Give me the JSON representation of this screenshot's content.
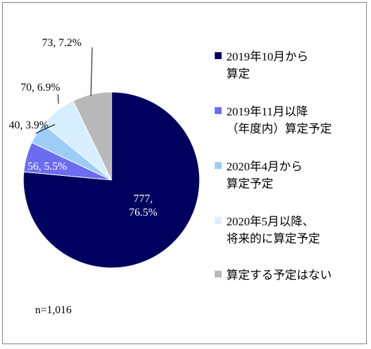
{
  "chart_data": {
    "type": "pie",
    "n_label": "n=1,016",
    "slices": [
      {
        "name": "2019年10月から算定",
        "legend_lines": [
          "2019年10月から",
          "算定"
        ],
        "value": 777,
        "percent": 76.5,
        "label_lines": [
          "777,",
          "76.5%"
        ],
        "color": "#00005e"
      },
      {
        "name": "2019年11月以降（年度内）算定予定",
        "legend_lines": [
          "2019年11月以降",
          "（年度内）算定予定"
        ],
        "value": 56,
        "percent": 5.5,
        "label_lines": [
          "56, 5.5%"
        ],
        "color": "#6c6cf0"
      },
      {
        "name": "2020年4月から算定予定",
        "legend_lines": [
          "2020年4月から",
          "算定予定"
        ],
        "value": 40,
        "percent": 3.9,
        "label_lines": [
          "40, 3.9%"
        ],
        "color": "#9dcdf7"
      },
      {
        "name": "2020年5月以降、将来的に算定予定",
        "legend_lines": [
          "2020年5月以降、",
          "将来的に算定予定"
        ],
        "value": 70,
        "percent": 6.9,
        "label_lines": [
          "70, 6.9%"
        ],
        "color": "#d7eefe"
      },
      {
        "name": "算定する予定はない",
        "legend_lines": [
          "算定する予定はない"
        ],
        "value": 73,
        "percent": 7.2,
        "label_lines": [
          "73, 7.2%"
        ],
        "color": "#b8b8b8"
      }
    ]
  }
}
